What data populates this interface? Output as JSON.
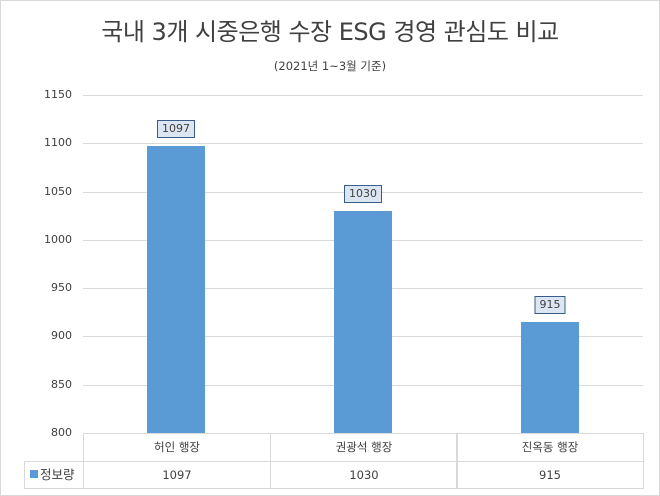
{
  "chart_data": {
    "type": "bar",
    "title": "국내 3개 시중은행 수장 ESG 경영 관심도 비교",
    "subtitle": "(2021년 1~3월 기준)",
    "xlabel": "",
    "ylabel": "",
    "categories": [
      "허인 행장",
      "권광석 행장",
      "진옥동 행장"
    ],
    "series": [
      {
        "name": "정보량",
        "values": [
          1097,
          1030,
          915
        ],
        "color": "#5b9bd5"
      }
    ],
    "ylim": [
      800,
      1150
    ],
    "yticks": [
      "1150",
      "1100",
      "1050",
      "1000",
      "950",
      "900",
      "850",
      "800"
    ],
    "grid": true,
    "data_labels": [
      "1097",
      "1030",
      "915"
    ],
    "legend_position": "data-table",
    "data_table": {
      "legend_label": "정보량",
      "row_values": [
        "1097",
        "1030",
        "915"
      ]
    }
  }
}
